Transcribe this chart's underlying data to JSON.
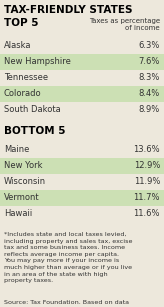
{
  "title_line1": "TAX-FRIENDLY STATES",
  "title_line2": "TOP 5",
  "subtitle": "Taxes as percentage\nof income",
  "top5": [
    {
      "state": "Alaska",
      "value": "6.3%",
      "highlight": false
    },
    {
      "state": "New Hampshire",
      "value": "7.6%",
      "highlight": true
    },
    {
      "state": "Tennessee",
      "value": "8.3%",
      "highlight": false
    },
    {
      "state": "Colorado",
      "value": "8.4%",
      "highlight": true
    },
    {
      "state": "South Dakota",
      "value": "8.9%",
      "highlight": false
    }
  ],
  "bottom5_title": "BOTTOM 5",
  "bottom5": [
    {
      "state": "Maine",
      "value": "13.6%",
      "highlight": false
    },
    {
      "state": "New York",
      "value": "12.9%",
      "highlight": true
    },
    {
      "state": "Wisconsin",
      "value": "11.9%",
      "highlight": false
    },
    {
      "state": "Vermont",
      "value": "11.7%",
      "highlight": true
    },
    {
      "state": "Hawaii",
      "value": "11.6%",
      "highlight": false
    }
  ],
  "footnote": "*Includes state and local taxes levied,\nincluding property and sales tax, excise\ntax and some business taxes. Income\nreflects average income per capita.\nYou may pay more if your income is\nmuch higher than average or if you live\nin an area of the state with high\nproperty taxes.",
  "source": "Source: Tax Foundation. Based on data\nfrom the Bureau of Economic Analysis.",
  "row_bg_color": "#cce0b4",
  "bg_color": "#ede8dc",
  "title_color": "#000000",
  "text_color": "#333333",
  "section_title_color": "#000000",
  "fig_width": 1.64,
  "fig_height": 3.07,
  "dpi": 100
}
